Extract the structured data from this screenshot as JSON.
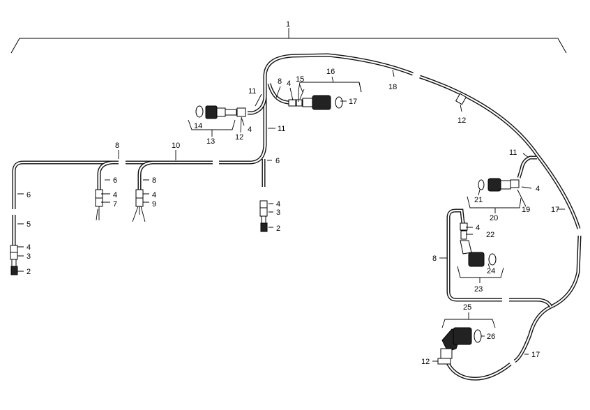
{
  "callouts": {
    "c1": "1",
    "c16": "16",
    "c11a": "11",
    "c8a": "8",
    "c4a": "4",
    "c15": "15",
    "c17a": "17",
    "c18": "18",
    "c14": "14",
    "c13": "13",
    "c12a": "12",
    "c4b": "4",
    "c11b": "11",
    "c12b": "12",
    "c8b": "8",
    "c10": "10",
    "c6a": "6",
    "c6b": "6",
    "c8c": "8",
    "c4c": "4",
    "c7": "7",
    "c4d": "4",
    "c9": "9",
    "c6c": "6",
    "c5": "5",
    "c4e": "4",
    "c3a": "3",
    "c2a": "2",
    "c4f": "4",
    "c3b": "3",
    "c2b": "2",
    "c11c": "11",
    "c4g": "4",
    "c21": "21",
    "c19": "19",
    "c20": "20",
    "c17b": "17",
    "c4h": "4",
    "c22": "22",
    "c8d": "8",
    "c24": "24",
    "c23": "23",
    "c25": "25",
    "c26": "26",
    "c12c": "12",
    "c17c": "17"
  }
}
